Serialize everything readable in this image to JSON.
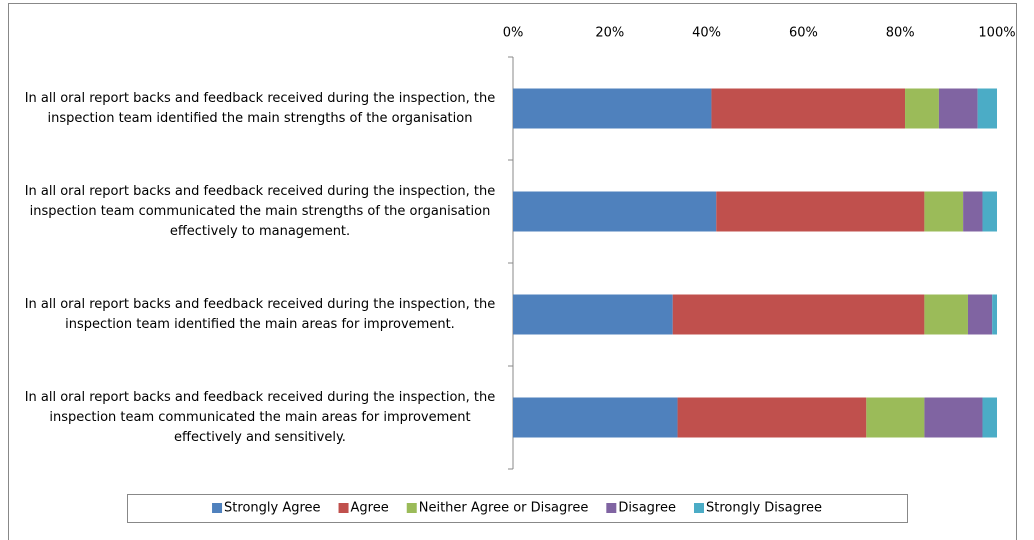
{
  "chart_data": {
    "type": "stacked_barh",
    "categories": [
      "In all oral report backs and feedback received during the inspection, the inspection team identified the main strengths of the organisation",
      "In all oral report backs and feedback received during the inspection, the inspection team communicated the main strengths of the organisation effectively to management.",
      "In all oral report backs and feedback received during the inspection, the inspection team identified the main areas for improvement.",
      "In all oral report backs and feedback received during the inspection, the inspection team communicated the main areas for improvement effectively and sensitively."
    ],
    "series": [
      {
        "name": "Strongly Agree",
        "color": "#4f81bd",
        "values": [
          41,
          42,
          33,
          34
        ]
      },
      {
        "name": "Agree",
        "color": "#c0504d",
        "values": [
          40,
          43,
          52,
          39
        ]
      },
      {
        "name": "Neither Agree or Disagree",
        "color": "#9bbb59",
        "values": [
          7,
          8,
          9,
          12
        ]
      },
      {
        "name": "Disagree",
        "color": "#8064a2",
        "values": [
          8,
          4,
          5,
          12
        ]
      },
      {
        "name": "Strongly Disagree",
        "color": "#4bacc6",
        "values": [
          4,
          3,
          1,
          3
        ]
      }
    ],
    "xlim": [
      0,
      100
    ],
    "xticks": [
      {
        "value": 0,
        "label": "0%"
      },
      {
        "value": 20,
        "label": "20%"
      },
      {
        "value": 40,
        "label": "40%"
      },
      {
        "value": 60,
        "label": "60%"
      },
      {
        "value": 80,
        "label": "80%"
      },
      {
        "value": 100,
        "label": "100%"
      }
    ],
    "legend": "bottom"
  }
}
